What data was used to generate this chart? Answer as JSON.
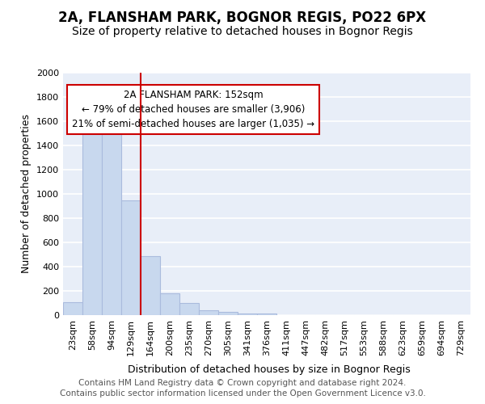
{
  "title1": "2A, FLANSHAM PARK, BOGNOR REGIS, PO22 6PX",
  "title2": "Size of property relative to detached houses in Bognor Regis",
  "xlabel": "Distribution of detached houses by size in Bognor Regis",
  "ylabel": "Number of detached properties",
  "footer1": "Contains HM Land Registry data © Crown copyright and database right 2024.",
  "footer2": "Contains public sector information licensed under the Open Government Licence v3.0.",
  "categories": [
    "23sqm",
    "58sqm",
    "94sqm",
    "129sqm",
    "164sqm",
    "200sqm",
    "235sqm",
    "270sqm",
    "305sqm",
    "341sqm",
    "376sqm",
    "411sqm",
    "447sqm",
    "482sqm",
    "517sqm",
    "553sqm",
    "588sqm",
    "623sqm",
    "659sqm",
    "694sqm",
    "729sqm"
  ],
  "values": [
    110,
    1540,
    1560,
    950,
    490,
    180,
    100,
    40,
    25,
    15,
    15,
    0,
    0,
    0,
    0,
    0,
    0,
    0,
    0,
    0,
    0
  ],
  "bar_color": "#c8d8ee",
  "bar_edge_color": "#aabbdd",
  "red_line_x": 3.5,
  "red_line_color": "#cc0000",
  "annotation_text": "2A FLANSHAM PARK: 152sqm\n← 79% of detached houses are smaller (3,906)\n21% of semi-detached houses are larger (1,035) →",
  "annotation_box_color": "#ffffff",
  "annotation_border_color": "#cc0000",
  "ylim": [
    0,
    2000
  ],
  "yticks": [
    0,
    200,
    400,
    600,
    800,
    1000,
    1200,
    1400,
    1600,
    1800,
    2000
  ],
  "plot_bg_color": "#e8eef8",
  "fig_bg_color": "#ffffff",
  "grid_color": "#ffffff",
  "title1_fontsize": 12,
  "title2_fontsize": 10,
  "xlabel_fontsize": 9,
  "ylabel_fontsize": 9,
  "tick_fontsize": 8,
  "footer_fontsize": 7.5,
  "annot_fontsize": 8.5
}
